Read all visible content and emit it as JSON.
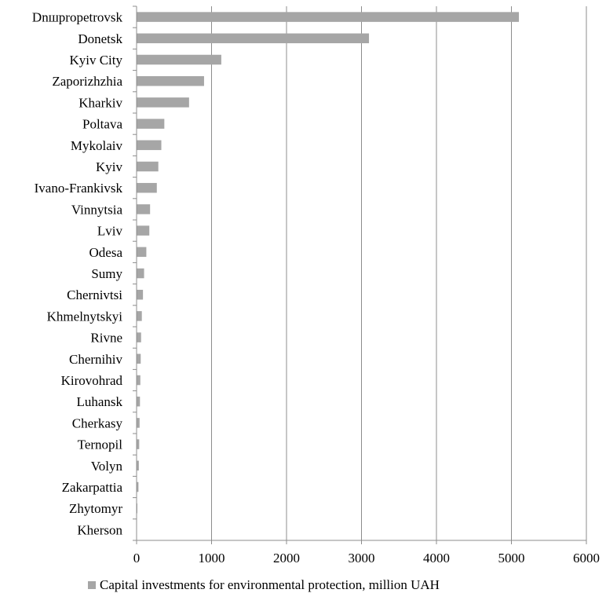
{
  "chart_data": {
    "type": "bar",
    "orientation": "horizontal",
    "categories": [
      "Dnшpropetrovsk",
      "Donetsk",
      "Kyiv City",
      "Zaporizhzhia",
      "Kharkiv",
      "Poltava",
      "Mykolaiv",
      "Kyiv",
      "Ivano-Frankivsk",
      "Vinnytsia",
      "Lviv",
      "Odesa",
      "Sumy",
      "Chernivtsi",
      "Khmelnytskyi",
      "Rivne",
      "Chernihiv",
      "Kirovohrad",
      "Luhansk",
      "Cherkasy",
      "Ternopil",
      "Volyn",
      "Zakarpattia",
      "Zhytomyr",
      "Kherson"
    ],
    "series": [
      {
        "name": "Capital investments for environmental protection, million UAH",
        "values": [
          5100,
          3100,
          1130,
          900,
          700,
          370,
          330,
          290,
          270,
          180,
          170,
          130,
          100,
          85,
          70,
          60,
          55,
          50,
          45,
          40,
          35,
          30,
          25,
          10,
          5
        ],
        "color": "#a6a6a6"
      }
    ],
    "xlim": [
      0,
      6000
    ],
    "xticks": [
      "0",
      "1000",
      "2000",
      "3000",
      "4000",
      "5000",
      "6000"
    ],
    "grid": "vertical",
    "legend": "bottom"
  }
}
